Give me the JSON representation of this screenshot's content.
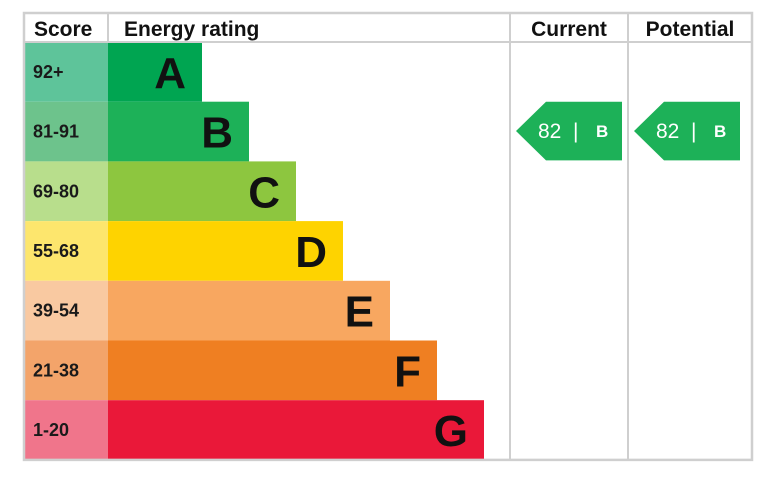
{
  "chart_data": {
    "type": "bar",
    "headers": {
      "score": "Score",
      "rating": "Energy rating",
      "current": "Current",
      "potential": "Potential"
    },
    "bands": [
      {
        "range": "92+",
        "letter": "A",
        "min": 92,
        "max": 100,
        "color": "#00a551",
        "score_color": "#5ec49a"
      },
      {
        "range": "81-91",
        "letter": "B",
        "min": 81,
        "max": 91,
        "color": "#1db158",
        "score_color": "#6dc38c"
      },
      {
        "range": "69-80",
        "letter": "C",
        "min": 69,
        "max": 80,
        "color": "#8dc63f",
        "score_color": "#b8de8c"
      },
      {
        "range": "55-68",
        "letter": "D",
        "min": 55,
        "max": 68,
        "color": "#fed300",
        "score_color": "#fde66d"
      },
      {
        "range": "39-54",
        "letter": "E",
        "min": 39,
        "max": 54,
        "color": "#f8a760",
        "score_color": "#f9c9a1"
      },
      {
        "range": "21-38",
        "letter": "F",
        "min": 21,
        "max": 38,
        "color": "#ef7f22",
        "score_color": "#f3a46a"
      },
      {
        "range": "1-20",
        "letter": "G",
        "min": 1,
        "max": 20,
        "color": "#ea1839",
        "score_color": "#f0758b"
      }
    ],
    "current": {
      "value": 82,
      "band": "B",
      "color": "#1db158"
    },
    "potential": {
      "value": 82,
      "band": "B",
      "color": "#1db158"
    }
  }
}
